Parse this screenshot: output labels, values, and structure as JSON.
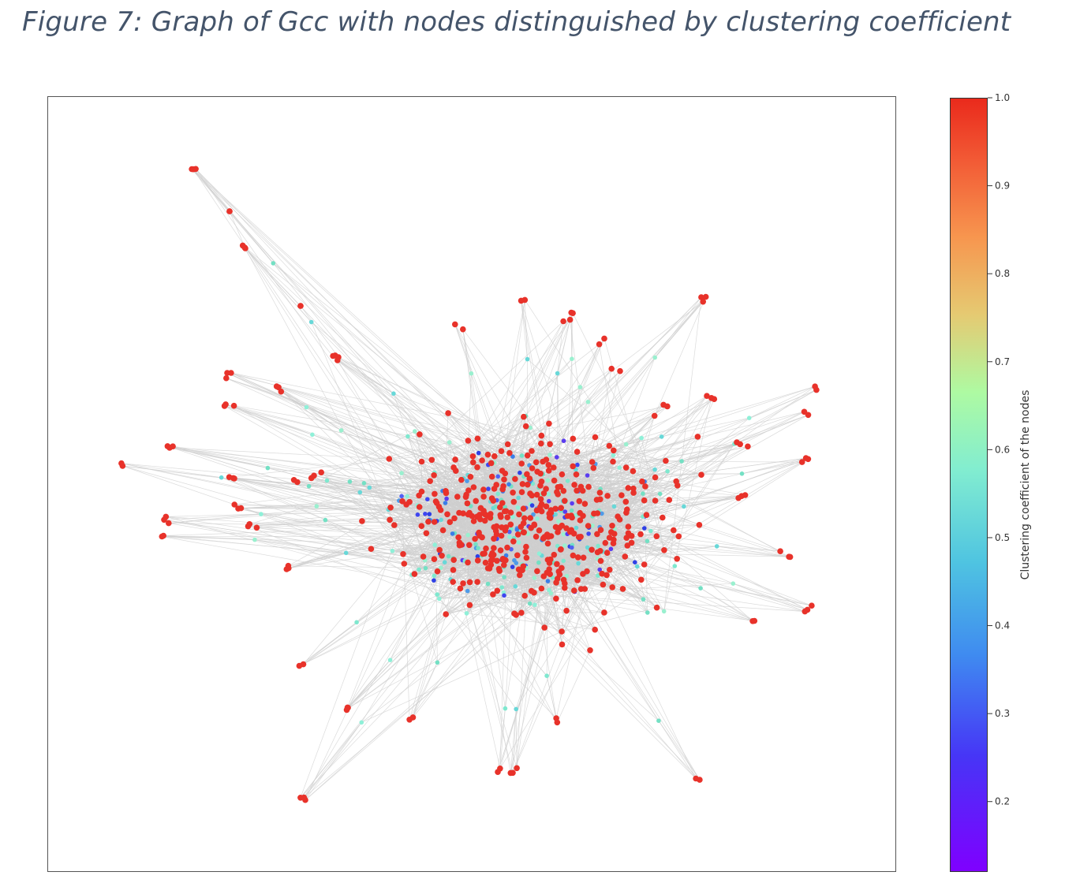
{
  "figure": {
    "caption": "Figure 7: Graph of Gcc with nodes distinguished by clustering coefficient"
  },
  "colorbar": {
    "label": "Clustering coefficient of the nodes",
    "ticks": [
      "1.0",
      "0.9",
      "0.8",
      "0.7",
      "0.6",
      "0.5",
      "0.4",
      "0.3",
      "0.2"
    ],
    "range": [
      0.12,
      1.0
    ],
    "colormap": "rainbow"
  },
  "colors": {
    "high": "#e8322a",
    "mid": "#7fe8cf",
    "low": "#3f46f0",
    "edge": "#cfcfcf",
    "caption": "#44546a"
  }
}
